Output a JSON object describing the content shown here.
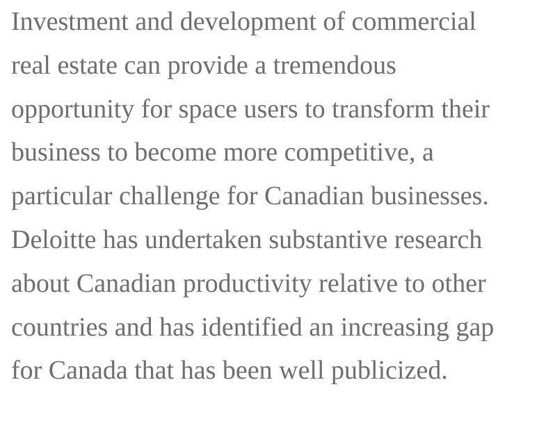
{
  "paragraph": {
    "lines": [
      "Investment and development of commercial",
      "real estate can provide a tremendous",
      "opportunity for space users to transform their",
      "business to become more competitive, a",
      "particular challenge for Canadian businesses.",
      "Deloitte has undertaken substantive research",
      "about Canadian productivity relative to other",
      "countries and has identified an increasing gap",
      "for Canada that has been well publicized."
    ]
  }
}
